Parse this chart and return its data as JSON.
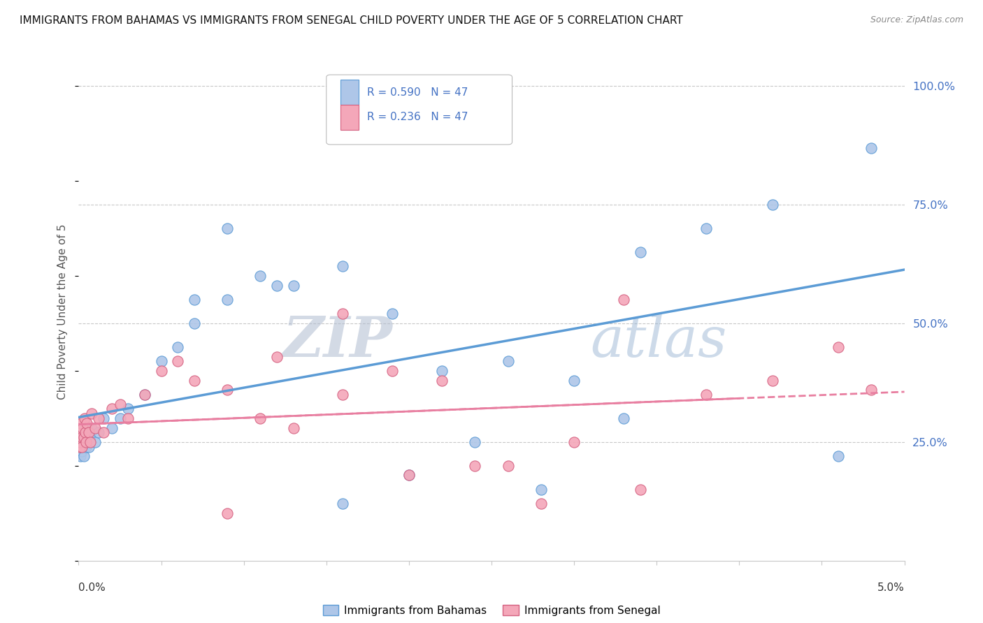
{
  "title": "IMMIGRANTS FROM BAHAMAS VS IMMIGRANTS FROM SENEGAL CHILD POVERTY UNDER THE AGE OF 5 CORRELATION CHART",
  "source": "Source: ZipAtlas.com",
  "ylabel": "Child Poverty Under the Age of 5",
  "xlim": [
    0.0,
    0.05
  ],
  "ylim": [
    0.0,
    1.05
  ],
  "legend_R1": "R = 0.590",
  "legend_N1": "N = 47",
  "legend_R2": "R = 0.236",
  "legend_N2": "N = 47",
  "legend_label1": "Immigrants from Bahamas",
  "legend_label2": "Immigrants from Senegal",
  "color_bahamas": "#aec6e8",
  "color_senegal": "#f4a7b9",
  "color_line_bahamas": "#5b9bd5",
  "color_line_senegal": "#e87ea0",
  "color_text_legend": "#4472c4",
  "watermark_zip": "ZIP",
  "watermark_atlas": "atlas",
  "bahamas_x": [
    5e-05,
    8e-05,
    0.0001,
    0.00012,
    0.00015,
    0.00018,
    0.0002,
    0.00025,
    0.0003,
    0.00035,
    0.0004,
    0.00045,
    0.0005,
    0.0006,
    0.0007,
    0.0008,
    0.001,
    0.0012,
    0.0015,
    0.002,
    0.0025,
    0.003,
    0.004,
    0.005,
    0.006,
    0.007,
    0.009,
    0.011,
    0.013,
    0.016,
    0.019,
    0.022,
    0.026,
    0.03,
    0.034,
    0.038,
    0.042,
    0.046,
    0.048,
    0.033,
    0.028,
    0.024,
    0.02,
    0.016,
    0.012,
    0.009,
    0.007
  ],
  "bahamas_y": [
    0.27,
    0.25,
    0.22,
    0.24,
    0.26,
    0.23,
    0.27,
    0.25,
    0.22,
    0.26,
    0.28,
    0.24,
    0.27,
    0.24,
    0.26,
    0.28,
    0.25,
    0.27,
    0.3,
    0.28,
    0.3,
    0.32,
    0.35,
    0.42,
    0.45,
    0.5,
    0.55,
    0.6,
    0.58,
    0.62,
    0.52,
    0.4,
    0.42,
    0.38,
    0.65,
    0.7,
    0.75,
    0.22,
    0.87,
    0.3,
    0.15,
    0.25,
    0.18,
    0.12,
    0.58,
    0.7,
    0.55
  ],
  "senegal_x": [
    3e-05,
    5e-05,
    8e-05,
    0.0001,
    0.00012,
    0.00015,
    0.00018,
    0.0002,
    0.00025,
    0.0003,
    0.00035,
    0.0004,
    0.00045,
    0.0005,
    0.0006,
    0.0007,
    0.0008,
    0.001,
    0.0012,
    0.0015,
    0.002,
    0.0025,
    0.003,
    0.004,
    0.005,
    0.006,
    0.007,
    0.009,
    0.011,
    0.013,
    0.016,
    0.019,
    0.022,
    0.026,
    0.03,
    0.034,
    0.038,
    0.042,
    0.046,
    0.048,
    0.033,
    0.028,
    0.024,
    0.02,
    0.016,
    0.012,
    0.009
  ],
  "senegal_y": [
    0.26,
    0.28,
    0.24,
    0.27,
    0.25,
    0.29,
    0.26,
    0.24,
    0.28,
    0.26,
    0.3,
    0.27,
    0.25,
    0.29,
    0.27,
    0.25,
    0.31,
    0.28,
    0.3,
    0.27,
    0.32,
    0.33,
    0.3,
    0.35,
    0.4,
    0.42,
    0.38,
    0.36,
    0.3,
    0.28,
    0.35,
    0.4,
    0.38,
    0.2,
    0.25,
    0.15,
    0.35,
    0.38,
    0.45,
    0.36,
    0.55,
    0.12,
    0.2,
    0.18,
    0.52,
    0.43,
    0.1
  ]
}
